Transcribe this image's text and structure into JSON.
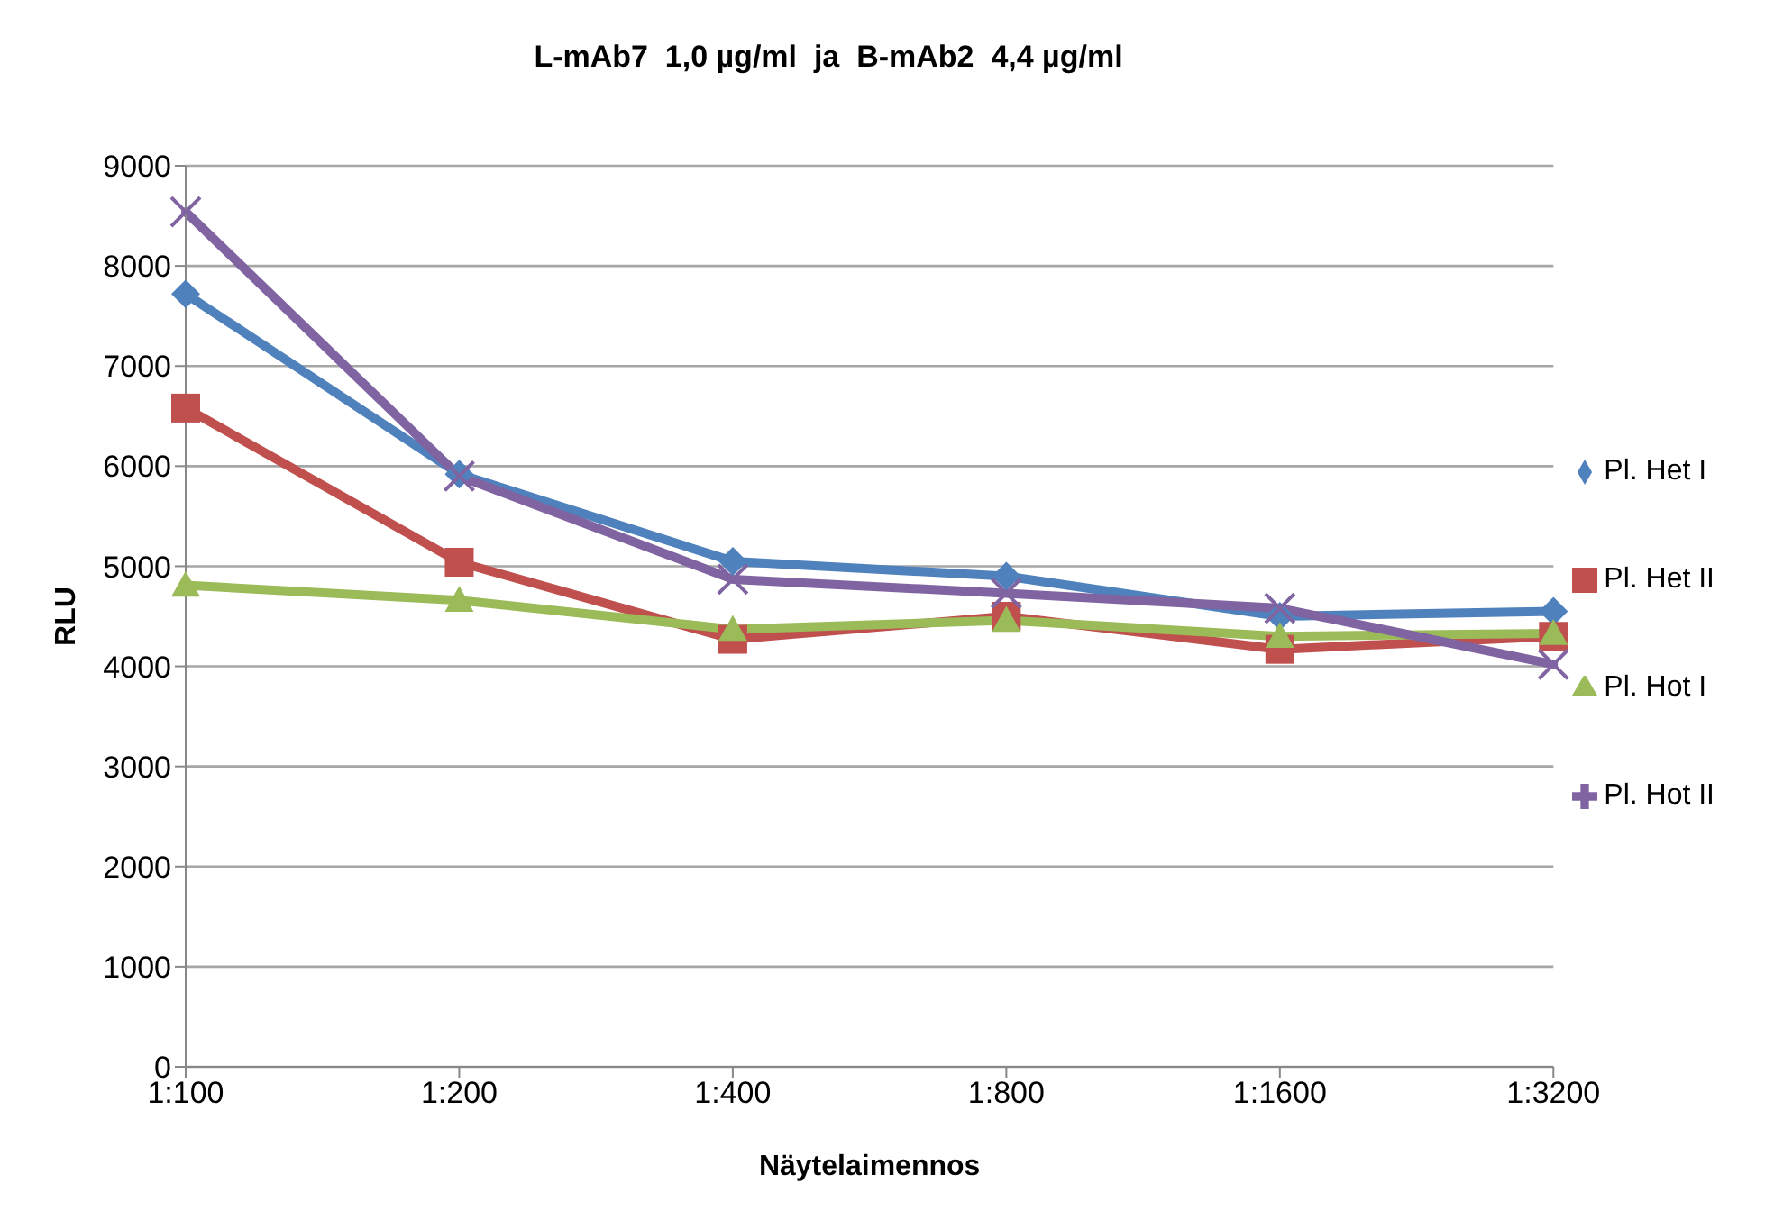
{
  "chart_data": {
    "type": "line",
    "title": "L-mAb7  1,0 µg/ml  ja  B-mAb2  4,4 µg/ml",
    "xlabel": "Näytelaimennos",
    "ylabel": "RLU",
    "categories": [
      "1:100",
      "1:200",
      "1:400",
      "1:800",
      "1:1600",
      "1:3200"
    ],
    "series": [
      {
        "name": "Pl. Het I",
        "color": "#4f81bd",
        "marker": "diamond",
        "values": [
          7720,
          5920,
          5050,
          4900,
          4500,
          4550
        ]
      },
      {
        "name": "Pl. Het II",
        "color": "#c0504d",
        "marker": "square",
        "values": [
          6580,
          5040,
          4270,
          4500,
          4170,
          4300
        ]
      },
      {
        "name": "Pl. Hot I",
        "color": "#9bbb59",
        "marker": "triangle",
        "values": [
          4810,
          4660,
          4370,
          4460,
          4300,
          4330
        ]
      },
      {
        "name": "Pl. Hot II",
        "color": "#8064a2",
        "marker": "cross",
        "values": [
          8540,
          5900,
          4870,
          4730,
          4580,
          4020
        ]
      }
    ],
    "ylim": [
      0,
      9000
    ],
    "yticks": [
      0,
      1000,
      2000,
      3000,
      4000,
      5000,
      6000,
      7000,
      8000,
      9000
    ],
    "grid": "y",
    "legend": "right",
    "line_style": "solid"
  }
}
